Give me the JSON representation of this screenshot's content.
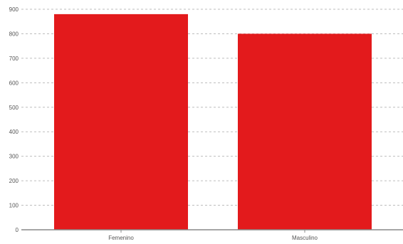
{
  "chart_data": {
    "type": "bar",
    "categories": [
      "Femenino",
      "Masculino"
    ],
    "values": [
      880,
      800
    ],
    "ylim": [
      0,
      900
    ],
    "yticks": [
      0,
      100,
      200,
      300,
      400,
      500,
      600,
      700,
      800,
      900
    ],
    "grid": true,
    "legend": "none",
    "colors": {
      "bar": "#e31a1c",
      "grid": "#bdbdbd",
      "axis": "#888888",
      "text": "#555555"
    }
  }
}
